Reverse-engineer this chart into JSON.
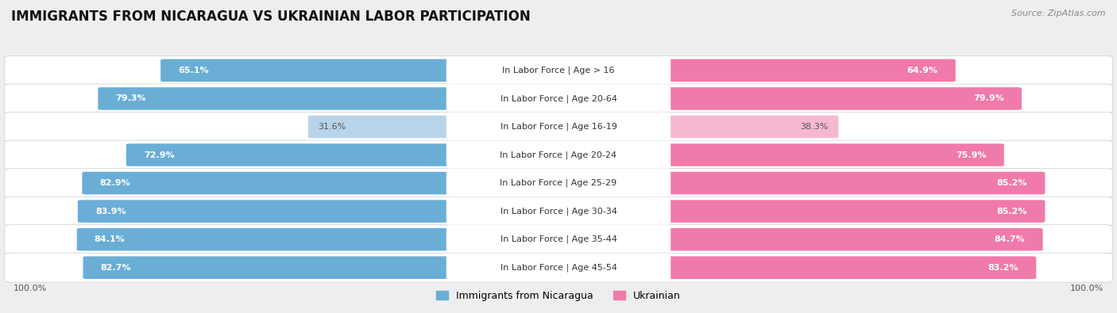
{
  "title": "IMMIGRANTS FROM NICARAGUA VS UKRAINIAN LABOR PARTICIPATION",
  "source": "Source: ZipAtlas.com",
  "categories": [
    "In Labor Force | Age > 16",
    "In Labor Force | Age 20-64",
    "In Labor Force | Age 16-19",
    "In Labor Force | Age 20-24",
    "In Labor Force | Age 25-29",
    "In Labor Force | Age 30-34",
    "In Labor Force | Age 35-44",
    "In Labor Force | Age 45-54"
  ],
  "nicaragua_values": [
    65.1,
    79.3,
    31.6,
    72.9,
    82.9,
    83.9,
    84.1,
    82.7
  ],
  "ukrainian_values": [
    64.9,
    79.9,
    38.3,
    75.9,
    85.2,
    85.2,
    84.7,
    83.2
  ],
  "nicaragua_color": "#6aaed6",
  "ukrainian_color": "#f07aaa",
  "nicaragua_color_light": "#b8d4ea",
  "ukrainian_color_light": "#f5b8d0",
  "bg_color": "#eeeeee",
  "title_fontsize": 12,
  "source_fontsize": 8,
  "legend_fontsize": 9,
  "value_fontsize": 8,
  "cat_fontsize": 8
}
